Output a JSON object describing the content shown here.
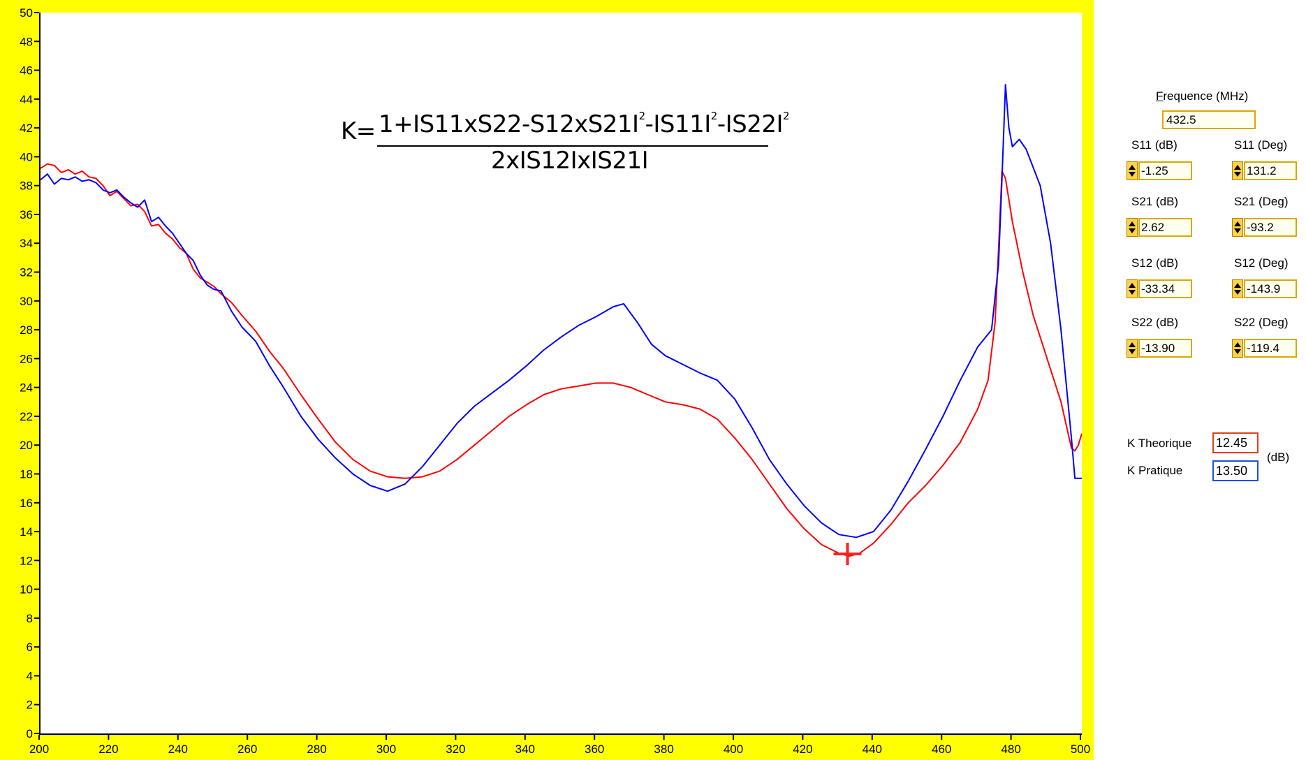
{
  "colors": {
    "frame": "#ffff00",
    "series_theorique": "#ff0000",
    "series_pratique": "#0000ff",
    "field_border": "#d9a800"
  },
  "formula": {
    "lhs": "K=",
    "numerator": "1+IS11xS22-S12xS21I",
    "num_part2": "-IS11I",
    "num_part3": "-IS22I",
    "exponent": "2",
    "denominator": "2xIS12IxIS21I"
  },
  "panel": {
    "frequence_label": "Frequence (MHz)",
    "frequence_value": "432.5",
    "params": [
      {
        "db_label": "S11 (dB)",
        "db_value": "-1.25",
        "deg_label": "S11 (Deg)",
        "deg_value": "131.2"
      },
      {
        "db_label": "S21 (dB)",
        "db_value": "2.62",
        "deg_label": "S21 (Deg)",
        "deg_value": "-93.2"
      },
      {
        "db_label": "S12 (dB)",
        "db_value": "-33.34",
        "deg_label": "S12 (Deg)",
        "deg_value": "-143.9"
      },
      {
        "db_label": "S22 (dB)",
        "db_value": "-13.90",
        "deg_label": "S22 (Deg)",
        "deg_value": "-119.4"
      }
    ],
    "k_theorique_label": "K Theorique",
    "k_theorique_value": "12.45",
    "k_pratique_label": "K Pratique",
    "k_pratique_value": "13.50",
    "k_unit": "(dB)"
  },
  "chart_data": {
    "type": "line",
    "title": "",
    "xlabel": "",
    "ylabel": "",
    "xlim": [
      200,
      500
    ],
    "ylim": [
      0,
      50
    ],
    "xticks": [
      200,
      220,
      240,
      260,
      280,
      300,
      320,
      340,
      360,
      380,
      400,
      420,
      440,
      460,
      480,
      500
    ],
    "yticks": [
      0,
      2,
      4,
      6,
      8,
      10,
      12,
      14,
      16,
      18,
      20,
      22,
      24,
      26,
      28,
      30,
      32,
      34,
      36,
      38,
      40,
      42,
      44,
      46,
      48,
      50
    ],
    "grid": false,
    "cursor": {
      "x": 432.5,
      "y": 12.45
    },
    "series": [
      {
        "color": "#ff0000",
        "points": [
          [
            200,
            39.2
          ],
          [
            202,
            39.5
          ],
          [
            204,
            39.4
          ],
          [
            206,
            38.9
          ],
          [
            208,
            39.1
          ],
          [
            210,
            38.8
          ],
          [
            212,
            39.0
          ],
          [
            214,
            38.6
          ],
          [
            216,
            38.5
          ],
          [
            218,
            38.0
          ],
          [
            220,
            37.3
          ],
          [
            222,
            37.6
          ],
          [
            224,
            37.1
          ],
          [
            226,
            36.6
          ],
          [
            228,
            36.7
          ],
          [
            230,
            36.2
          ],
          [
            232,
            35.2
          ],
          [
            234,
            35.3
          ],
          [
            236,
            34.7
          ],
          [
            238,
            34.3
          ],
          [
            240,
            33.7
          ],
          [
            242,
            33.3
          ],
          [
            244,
            32.2
          ],
          [
            246,
            31.6
          ],
          [
            248,
            31.3
          ],
          [
            250,
            31.0
          ],
          [
            252,
            30.5
          ],
          [
            255,
            29.9
          ],
          [
            258,
            29.0
          ],
          [
            262,
            27.9
          ],
          [
            266,
            26.5
          ],
          [
            270,
            25.3
          ],
          [
            275,
            23.5
          ],
          [
            280,
            21.8
          ],
          [
            285,
            20.2
          ],
          [
            290,
            19.0
          ],
          [
            295,
            18.2
          ],
          [
            300,
            17.8
          ],
          [
            305,
            17.7
          ],
          [
            310,
            17.8
          ],
          [
            315,
            18.2
          ],
          [
            320,
            19.0
          ],
          [
            325,
            20.0
          ],
          [
            330,
            21.0
          ],
          [
            335,
            22.0
          ],
          [
            340,
            22.8
          ],
          [
            345,
            23.5
          ],
          [
            350,
            23.9
          ],
          [
            355,
            24.1
          ],
          [
            360,
            24.3
          ],
          [
            365,
            24.3
          ],
          [
            370,
            24.0
          ],
          [
            375,
            23.5
          ],
          [
            380,
            23.0
          ],
          [
            385,
            22.8
          ],
          [
            390,
            22.5
          ],
          [
            395,
            21.8
          ],
          [
            400,
            20.5
          ],
          [
            405,
            19.0
          ],
          [
            410,
            17.3
          ],
          [
            415,
            15.6
          ],
          [
            420,
            14.2
          ],
          [
            425,
            13.1
          ],
          [
            430,
            12.5
          ],
          [
            433,
            12.3
          ],
          [
            436,
            12.5
          ],
          [
            440,
            13.2
          ],
          [
            445,
            14.5
          ],
          [
            450,
            16.0
          ],
          [
            455,
            17.2
          ],
          [
            460,
            18.6
          ],
          [
            465,
            20.2
          ],
          [
            470,
            22.5
          ],
          [
            473,
            24.5
          ],
          [
            475,
            28.5
          ],
          [
            476,
            33.5
          ],
          [
            477,
            39.0
          ],
          [
            478,
            38.5
          ],
          [
            480,
            35.5
          ],
          [
            483,
            32.0
          ],
          [
            486,
            29.0
          ],
          [
            490,
            26.0
          ],
          [
            494,
            23.0
          ],
          [
            497,
            19.8
          ],
          [
            498,
            19.6
          ],
          [
            499,
            20.0
          ],
          [
            500,
            20.8
          ]
        ]
      },
      {
        "color": "#0000ff",
        "points": [
          [
            200,
            38.4
          ],
          [
            202,
            38.8
          ],
          [
            204,
            38.1
          ],
          [
            206,
            38.5
          ],
          [
            208,
            38.4
          ],
          [
            210,
            38.6
          ],
          [
            212,
            38.3
          ],
          [
            214,
            38.4
          ],
          [
            216,
            38.2
          ],
          [
            218,
            37.7
          ],
          [
            220,
            37.5
          ],
          [
            222,
            37.7
          ],
          [
            224,
            37.2
          ],
          [
            226,
            36.8
          ],
          [
            228,
            36.5
          ],
          [
            230,
            37.0
          ],
          [
            232,
            35.5
          ],
          [
            234,
            35.8
          ],
          [
            236,
            35.2
          ],
          [
            238,
            34.7
          ],
          [
            240,
            34.0
          ],
          [
            242,
            33.3
          ],
          [
            244,
            32.8
          ],
          [
            246,
            31.8
          ],
          [
            248,
            31.1
          ],
          [
            250,
            30.8
          ],
          [
            252,
            30.7
          ],
          [
            255,
            29.3
          ],
          [
            258,
            28.2
          ],
          [
            262,
            27.2
          ],
          [
            266,
            25.5
          ],
          [
            270,
            24.0
          ],
          [
            275,
            22.0
          ],
          [
            280,
            20.4
          ],
          [
            285,
            19.1
          ],
          [
            290,
            18.0
          ],
          [
            295,
            17.2
          ],
          [
            300,
            16.8
          ],
          [
            305,
            17.3
          ],
          [
            310,
            18.5
          ],
          [
            315,
            20.0
          ],
          [
            320,
            21.5
          ],
          [
            325,
            22.7
          ],
          [
            330,
            23.6
          ],
          [
            335,
            24.5
          ],
          [
            340,
            25.5
          ],
          [
            345,
            26.6
          ],
          [
            350,
            27.5
          ],
          [
            355,
            28.3
          ],
          [
            360,
            28.9
          ],
          [
            365,
            29.6
          ],
          [
            368,
            29.8
          ],
          [
            372,
            28.5
          ],
          [
            376,
            27.0
          ],
          [
            380,
            26.2
          ],
          [
            385,
            25.6
          ],
          [
            390,
            25.0
          ],
          [
            395,
            24.5
          ],
          [
            400,
            23.2
          ],
          [
            405,
            21.2
          ],
          [
            410,
            19.0
          ],
          [
            415,
            17.3
          ],
          [
            420,
            15.8
          ],
          [
            425,
            14.6
          ],
          [
            430,
            13.8
          ],
          [
            435,
            13.6
          ],
          [
            440,
            14.0
          ],
          [
            445,
            15.5
          ],
          [
            450,
            17.5
          ],
          [
            455,
            19.7
          ],
          [
            460,
            22.0
          ],
          [
            465,
            24.5
          ],
          [
            470,
            26.8
          ],
          [
            474,
            28.0
          ],
          [
            476,
            32.5
          ],
          [
            477,
            38.5
          ],
          [
            478,
            45.0
          ],
          [
            479,
            42.0
          ],
          [
            480,
            40.7
          ],
          [
            482,
            41.2
          ],
          [
            484,
            40.5
          ],
          [
            488,
            38.0
          ],
          [
            491,
            34.0
          ],
          [
            494,
            28.0
          ],
          [
            497,
            20.5
          ],
          [
            498,
            17.7
          ],
          [
            500,
            17.7
          ]
        ]
      }
    ]
  }
}
